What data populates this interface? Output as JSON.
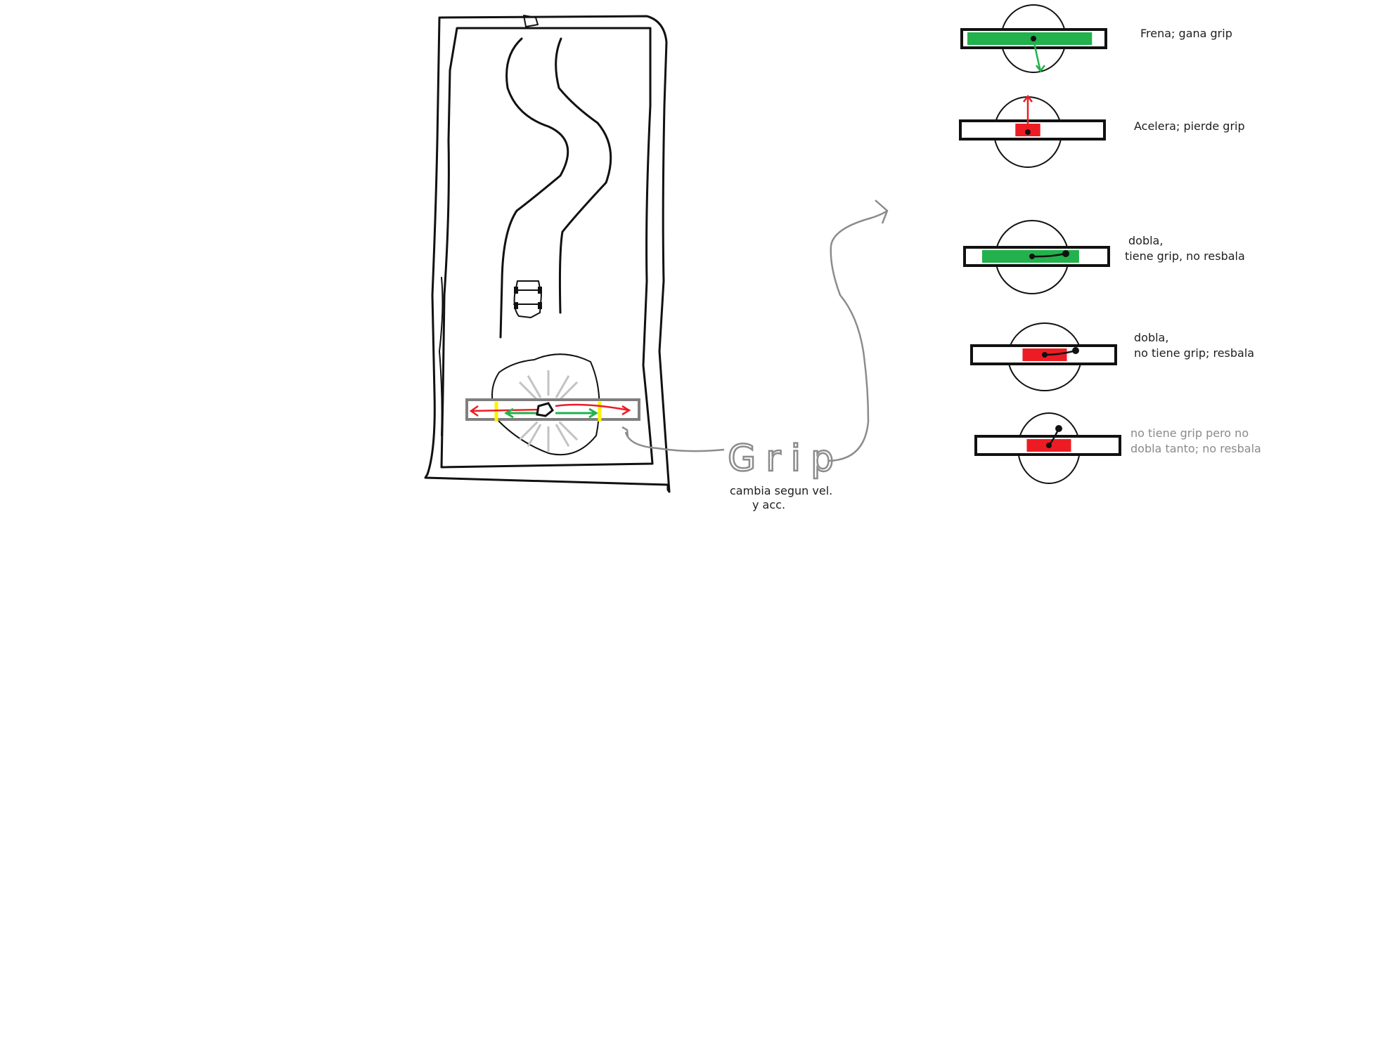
{
  "colors": {
    "grip_green": "#22b14c",
    "slip_red": "#ed1c24",
    "limit_yellow": "#fff200",
    "sketch_gray": "#8c8c8c",
    "ink": "#111111"
  },
  "main_sketch": {
    "grip_label": "Grip",
    "grip_note_line1": "cambia segun vel.",
    "grip_note_line2": "y acc."
  },
  "states": [
    {
      "label_line1": "Frena; gana grip",
      "label_line2": "",
      "zone": "green",
      "zone_fill_fraction": 0.9,
      "vector": "brake"
    },
    {
      "label_line1": "Acelera; pierde grip",
      "label_line2": "",
      "zone": "red",
      "zone_fill_fraction": 0.18,
      "vector": "accelerate"
    },
    {
      "label_line1": "dobla,",
      "label_line2": "tiene grip, no resbala",
      "zone": "green",
      "zone_fill_fraction": 0.7,
      "vector": "turn"
    },
    {
      "label_line1": "dobla,",
      "label_line2": "no tiene grip; resbala",
      "zone": "red",
      "zone_fill_fraction": 0.32,
      "vector": "turn-slide"
    },
    {
      "label_line1": "no tiene grip pero no",
      "label_line2": "dobla tanto; no resbala",
      "zone": "red",
      "zone_fill_fraction": 0.32,
      "vector": "turn-small",
      "muted": true
    }
  ]
}
